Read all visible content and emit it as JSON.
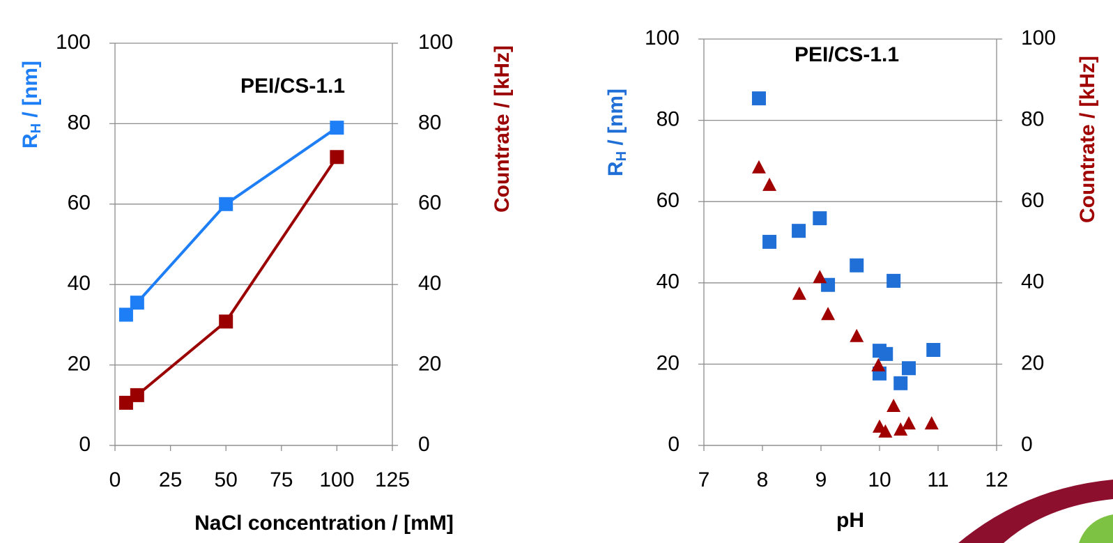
{
  "chart_data": [
    {
      "type": "line",
      "title": "PEI/CS-1.1",
      "xlabel": "NaCl concentration / [mM]",
      "ylabel": [
        "R",
        "H",
        " / [nm]"
      ],
      "y2label": "Countrate / [kHz]",
      "x": [
        5,
        10,
        50,
        100
      ],
      "xlim": [
        0,
        125
      ],
      "xticks": [
        0,
        25,
        50,
        75,
        100,
        125
      ],
      "ylim": [
        0,
        100
      ],
      "yticks": [
        0,
        20,
        40,
        60,
        80,
        100
      ],
      "y2lim": [
        0,
        100
      ],
      "y2ticks": [
        0,
        20,
        40,
        60,
        80,
        100
      ],
      "grid": true,
      "series": [
        {
          "color": "#1e7ef5",
          "marker": "square",
          "values": [
            32.5,
            35.5,
            60,
            79
          ]
        },
        {
          "color": "#9b0000",
          "marker": "square",
          "axis": "y2",
          "values": [
            10.6,
            12.5,
            30.8,
            71.7
          ]
        }
      ]
    },
    {
      "type": "scatter",
      "title": "PEI/CS-1.1",
      "xlabel": "pH",
      "ylabel": [
        "R",
        "H",
        " / [nm]"
      ],
      "y2label": "Countrate / [kHz]",
      "xlim": [
        7,
        12
      ],
      "xticks": [
        7,
        8,
        9,
        10,
        11,
        12
      ],
      "ylim": [
        0,
        100
      ],
      "yticks": [
        0,
        20,
        40,
        60,
        80,
        100
      ],
      "y2lim": [
        0,
        100
      ],
      "y2ticks": [
        0,
        20,
        40,
        60,
        80,
        100
      ],
      "grid": true,
      "series": [
        {
          "color": "#1f6fd6",
          "marker": "square",
          "x": [
            7.94,
            8.12,
            8.62,
            8.98,
            9.12,
            9.61,
            10.24,
            10.0,
            10.11,
            10.0,
            10.36,
            10.5,
            10.92
          ],
          "values": [
            85.4,
            50.1,
            52.8,
            55.9,
            39.5,
            44.3,
            40.5,
            23.3,
            22.5,
            17.7,
            15.3,
            19.0,
            23.5
          ]
        },
        {
          "color": "#a00000",
          "marker": "triangle",
          "axis": "y2",
          "x": [
            7.94,
            8.12,
            8.63,
            8.98,
            9.12,
            9.61,
            9.98,
            10.24,
            10.0,
            10.1,
            10.5,
            10.36,
            10.89
          ],
          "values": [
            68.3,
            64.0,
            37.2,
            41.3,
            32.2,
            26.8,
            19.6,
            9.6,
            4.5,
            3.3,
            5.3,
            3.8,
            5.3
          ]
        }
      ]
    }
  ]
}
